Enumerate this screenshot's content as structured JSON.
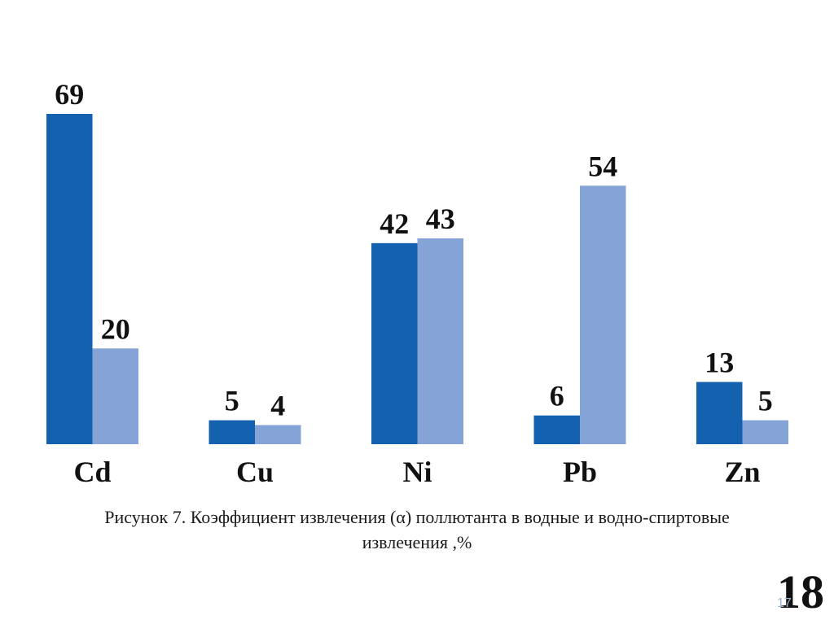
{
  "chart_data": {
    "type": "bar",
    "categories": [
      "Cd",
      "Cu",
      "Ni",
      "Pb",
      "Zn"
    ],
    "series": [
      {
        "values": [
          69,
          5,
          42,
          6,
          13
        ],
        "color": "#1461b0"
      },
      {
        "values": [
          20,
          4,
          43,
          54,
          5
        ],
        "color": "#85a3d6"
      }
    ],
    "title": "",
    "xlabel": "",
    "ylabel": "",
    "ylim": [
      0,
      69
    ],
    "grid": false,
    "legend": "none",
    "data_labels": true
  },
  "caption": {
    "line1": "Рисунок 7. Коэффициент извлечения (α) поллютанта в водные и водно-спиртовые",
    "line2": "извлечения ,%"
  },
  "page_number": "18",
  "ghost_page_number": "17"
}
